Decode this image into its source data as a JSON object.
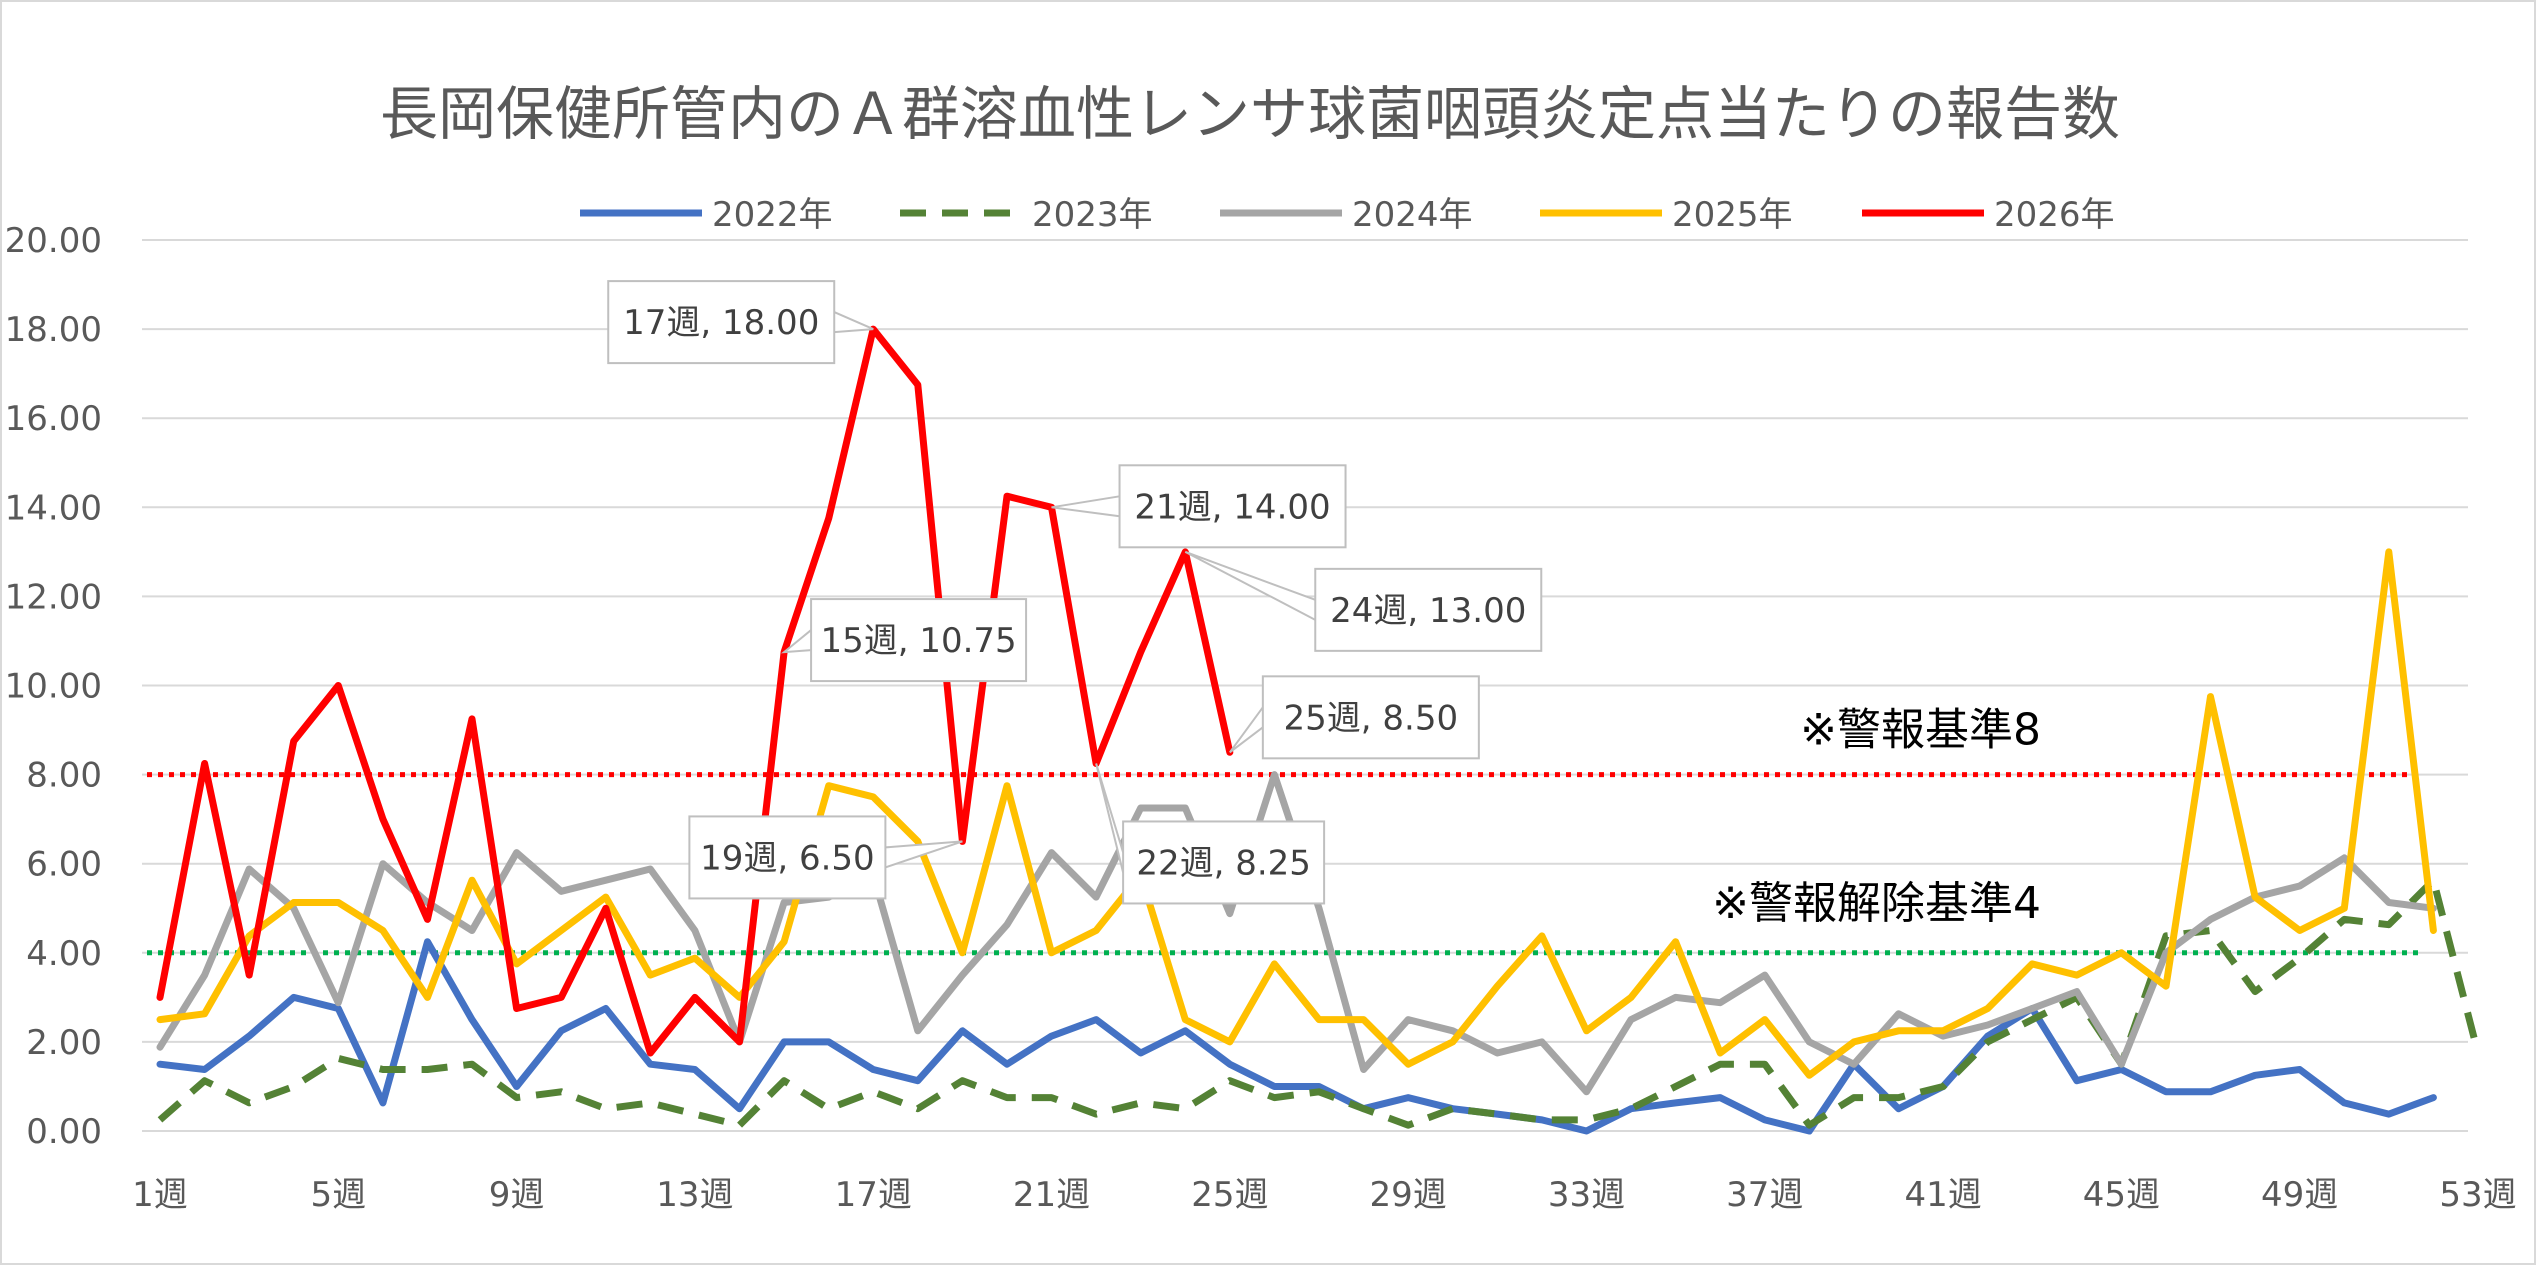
{
  "chart_data": {
    "type": "line",
    "title": "長岡保健所管内のＡ群溶血性レンサ球菌咽頭炎定点当たりの報告数",
    "xlabel": "",
    "ylabel": "",
    "ylim": [
      0,
      20
    ],
    "y_ticks": [
      "0.00",
      "2.00",
      "4.00",
      "6.00",
      "8.00",
      "10.00",
      "12.00",
      "14.00",
      "16.00",
      "18.00",
      "20.00"
    ],
    "x_range": [
      1,
      53
    ],
    "x_ticks": [
      "1週",
      "5週",
      "9週",
      "13週",
      "17週",
      "21週",
      "25週",
      "29週",
      "33週",
      "37週",
      "41週",
      "45週",
      "49週",
      "53週"
    ],
    "grid": true,
    "legend_position": "top",
    "series": [
      {
        "name": "2022年",
        "color": "#4472C4",
        "dash": "solid",
        "values": [
          1.5,
          1.38,
          2.13,
          3.0,
          2.75,
          0.63,
          4.25,
          2.5,
          1.0,
          2.25,
          2.75,
          1.5,
          1.38,
          0.5,
          2.0,
          2.0,
          1.38,
          1.13,
          2.25,
          1.5,
          2.13,
          2.5,
          1.75,
          2.25,
          1.5,
          1.0,
          1.0,
          0.5,
          0.75,
          0.5,
          0.38,
          0.25,
          0.0,
          0.5,
          0.63,
          0.75,
          0.25,
          0.0,
          1.5,
          0.5,
          1.0,
          2.13,
          2.75,
          1.13,
          1.38,
          0.88,
          0.88,
          1.25,
          1.38,
          0.63,
          0.38,
          0.75
        ]
      },
      {
        "name": "2023年",
        "color": "#548235",
        "dash": "dashed",
        "values": [
          0.25,
          1.13,
          0.63,
          1.0,
          1.63,
          1.38,
          1.38,
          1.5,
          0.75,
          0.88,
          0.5,
          0.63,
          0.38,
          0.13,
          1.13,
          0.5,
          0.88,
          0.5,
          1.13,
          0.75,
          0.75,
          0.38,
          0.63,
          0.5,
          1.13,
          0.75,
          0.88,
          0.5,
          0.13,
          0.5,
          0.38,
          0.25,
          0.25,
          0.5,
          1.0,
          1.5,
          1.5,
          0.13,
          0.75,
          0.75,
          1.0,
          2.0,
          2.5,
          3.0,
          1.5,
          4.38,
          4.5,
          3.13,
          3.88,
          4.75,
          4.63,
          5.63,
          1.75
        ]
      },
      {
        "name": "2024年",
        "color": "#A5A5A5",
        "dash": "solid",
        "values": [
          1.88,
          3.5,
          5.88,
          5.0,
          2.88,
          6.0,
          5.13,
          4.5,
          6.25,
          5.38,
          5.63,
          5.88,
          4.5,
          2.0,
          5.13,
          5.25,
          5.75,
          2.25,
          3.5,
          4.63,
          6.25,
          5.25,
          7.25,
          7.25,
          4.88,
          8.0,
          5.0,
          1.38,
          2.5,
          2.25,
          1.75,
          2.0,
          0.88,
          2.5,
          3.0,
          2.88,
          3.5,
          2.0,
          1.5,
          2.63,
          2.13,
          2.38,
          2.75,
          3.13,
          1.5,
          4.0,
          4.75,
          5.25,
          5.5,
          6.13,
          5.13,
          5.0
        ]
      },
      {
        "name": "2025年",
        "color": "#FFC000",
        "dash": "solid",
        "values": [
          2.5,
          2.63,
          4.38,
          5.13,
          5.13,
          4.5,
          3.0,
          5.63,
          3.75,
          4.5,
          5.25,
          3.5,
          3.88,
          3.0,
          4.25,
          7.75,
          7.5,
          6.5,
          4.0,
          7.75,
          4.0,
          4.5,
          5.75,
          2.5,
          2.0,
          3.75,
          2.5,
          2.5,
          1.5,
          2.0,
          3.25,
          4.38,
          2.25,
          3.0,
          4.25,
          1.75,
          2.5,
          1.25,
          2.0,
          2.25,
          2.25,
          2.75,
          3.75,
          3.5,
          4.0,
          3.25,
          9.75,
          5.25,
          4.5,
          5.0,
          13.0,
          4.5
        ]
      },
      {
        "name": "2026年",
        "color": "#FF0000",
        "dash": "solid",
        "values": [
          3.0,
          8.25,
          3.5,
          8.75,
          10.0,
          7.0,
          4.75,
          9.25,
          2.75,
          3.0,
          5.0,
          1.75,
          3.0,
          2.0,
          10.75,
          13.75,
          18.0,
          16.75,
          6.5,
          14.25,
          14.0,
          8.25,
          10.75,
          13.0,
          8.5
        ]
      }
    ],
    "reference_lines": [
      {
        "value": 8,
        "label": "※警報基準8",
        "color": "#FF0000"
      },
      {
        "value": 4,
        "label": "※警報解除基準4",
        "color": "#00B050"
      }
    ],
    "annotations": [
      {
        "text": "17週, 18.00",
        "week": 17,
        "value": 18.0
      },
      {
        "text": "21週, 14.00",
        "week": 21,
        "value": 14.0
      },
      {
        "text": "24週, 13.00",
        "week": 24,
        "value": 13.0
      },
      {
        "text": "15週, 10.75",
        "week": 15,
        "value": 10.75
      },
      {
        "text": "25週, 8.50",
        "week": 25,
        "value": 8.5
      },
      {
        "text": "19週, 6.50",
        "week": 19,
        "value": 6.5
      },
      {
        "text": "22週, 8.25",
        "week": 22,
        "value": 8.25
      }
    ]
  }
}
